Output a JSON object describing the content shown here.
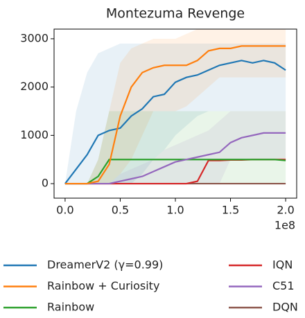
{
  "chart_data": {
    "type": "line",
    "title": "Montezuma Revenge",
    "x_offset_label": "1e8",
    "x": [
      0.0,
      0.1,
      0.2,
      0.3,
      0.4,
      0.5,
      0.6,
      0.7,
      0.8,
      0.9,
      1.0,
      1.1,
      1.2,
      1.3,
      1.4,
      1.5,
      1.6,
      1.7,
      1.8,
      1.9,
      2.0
    ],
    "xlim": [
      -0.1,
      2.1
    ],
    "xticks": [
      {
        "value": 0,
        "label": "0.0"
      },
      {
        "value": 0.5,
        "label": "0.5"
      },
      {
        "value": 1,
        "label": "1.0"
      },
      {
        "value": 1.5,
        "label": "1.5"
      },
      {
        "value": 2,
        "label": "2.0"
      }
    ],
    "ylim": [
      -300,
      3200
    ],
    "yticks": [
      0,
      1000,
      2000,
      3000
    ],
    "grid": false,
    "legend": "below",
    "legend_columns": 2,
    "series": [
      {
        "name": "DreamerV2 (γ=0.99)",
        "color": "#1f77b4",
        "values": [
          0,
          300,
          600,
          1000,
          1100,
          1150,
          1400,
          1550,
          1800,
          1850,
          2100,
          2200,
          2250,
          2350,
          2450,
          2500,
          2550,
          2500,
          2550,
          2500,
          2350
        ],
        "upper": [
          0,
          1500,
          2300,
          2700,
          2800,
          2900,
          2900,
          2900,
          2900,
          2900,
          2900,
          2900,
          2900,
          2900,
          2900,
          2900,
          2900,
          2900,
          2900,
          2900,
          2900
        ],
        "lower": [
          0,
          0,
          0,
          0,
          0,
          0,
          0,
          200,
          500,
          700,
          1000,
          1200,
          1400,
          1500,
          1500,
          1500,
          1500,
          1500,
          1500,
          1500,
          1500
        ]
      },
      {
        "name": "Rainbow + Curiosity",
        "color": "#ff7f0e",
        "values": [
          0,
          0,
          0,
          50,
          400,
          1400,
          2000,
          2300,
          2400,
          2450,
          2450,
          2450,
          2550,
          2750,
          2800,
          2800,
          2850,
          2850,
          2850,
          2850,
          2850
        ],
        "upper": [
          0,
          0,
          0,
          500,
          1500,
          2500,
          2800,
          2900,
          3000,
          3000,
          3000,
          3100,
          3200,
          3200,
          3200,
          3200,
          3200,
          3200,
          3200,
          3200,
          3200
        ],
        "lower": [
          0,
          0,
          0,
          0,
          0,
          200,
          500,
          1000,
          1500,
          1500,
          1500,
          1600,
          1800,
          2000,
          2200,
          2200,
          2200,
          2200,
          2200,
          2200,
          2200
        ]
      },
      {
        "name": "Rainbow",
        "color": "#2ca02c",
        "values": [
          0,
          0,
          0,
          150,
          500,
          500,
          500,
          500,
          500,
          500,
          500,
          500,
          500,
          500,
          500,
          500,
          500,
          500,
          500,
          500,
          480
        ],
        "upper": [
          0,
          0,
          0,
          500,
          1500,
          1500,
          1500,
          1500,
          1500,
          1500,
          1500,
          1500,
          1500,
          1500,
          1500,
          1500,
          1500,
          1500,
          1500,
          1500,
          1500
        ],
        "lower": [
          0,
          0,
          0,
          0,
          0,
          0,
          0,
          0,
          0,
          0,
          0,
          0,
          0,
          0,
          0,
          0,
          0,
          0,
          0,
          0,
          0
        ]
      },
      {
        "name": "IQN",
        "color": "#d62728",
        "values": [
          0,
          0,
          0,
          0,
          0,
          0,
          0,
          0,
          0,
          0,
          0,
          0,
          50,
          480,
          480,
          490,
          490,
          500,
          500,
          500,
          500
        ]
      },
      {
        "name": "C51",
        "color": "#9467bd",
        "values": [
          0,
          0,
          0,
          0,
          0,
          50,
          100,
          150,
          250,
          350,
          450,
          500,
          550,
          600,
          650,
          850,
          950,
          1000,
          1050,
          1050,
          1050
        ],
        "upper": [
          0,
          0,
          0,
          0,
          0,
          200,
          300,
          400,
          500,
          700,
          800,
          900,
          1000,
          1100,
          1300,
          1500,
          1500,
          1500,
          1500,
          1500,
          1500
        ],
        "lower": [
          0,
          0,
          0,
          0,
          0,
          0,
          0,
          0,
          0,
          0,
          0,
          0,
          0,
          0,
          0,
          500,
          500,
          500,
          500,
          500,
          500
        ]
      },
      {
        "name": "DQN",
        "color": "#8c564b",
        "values": [
          0,
          0,
          0,
          0,
          0,
          0,
          0,
          0,
          0,
          0,
          0,
          0,
          0,
          0,
          0,
          0,
          0,
          0,
          0,
          0,
          0
        ]
      }
    ]
  }
}
